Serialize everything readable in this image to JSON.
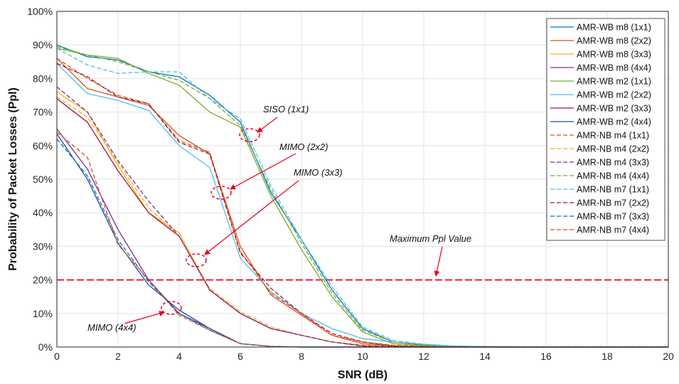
{
  "chart_data": {
    "type": "line",
    "xlabel": "SNR (dB)",
    "ylabel": "Probability of Packet Losses (Ppl)",
    "xlim": [
      0,
      20
    ],
    "ylim": [
      0,
      100
    ],
    "xticks": [
      "0",
      "2",
      "4",
      "6",
      "8",
      "10",
      "12",
      "14",
      "16",
      "18",
      "20"
    ],
    "yticks": [
      "0%",
      "10%",
      "20%",
      "30%",
      "40%",
      "50%",
      "60%",
      "70%",
      "80%",
      "90%",
      "100%"
    ],
    "grid": true,
    "legend_position": "top-right",
    "x": [
      0,
      1,
      2,
      3,
      4,
      5,
      6,
      7,
      8,
      9,
      10,
      11,
      12,
      13,
      14,
      15,
      16,
      17,
      18,
      19,
      20
    ],
    "series": [
      {
        "name": "AMR-WB m8 (1x1)",
        "color": "#0072BD",
        "dash": false,
        "values": [
          90,
          86.5,
          85.5,
          82,
          80.5,
          75,
          67,
          46,
          32,
          17,
          5.5,
          1.5,
          0.5,
          0.3,
          0.1,
          0,
          0,
          0,
          0,
          0,
          0
        ]
      },
      {
        "name": "AMR-WB m8 (2x2)",
        "color": "#D95319",
        "dash": false,
        "values": [
          86,
          77,
          74.5,
          72,
          63,
          57.5,
          30,
          15.5,
          9.5,
          3.5,
          1,
          0.3,
          0.1,
          0,
          0,
          0,
          0,
          0,
          0,
          0,
          0
        ]
      },
      {
        "name": "AMR-WB m8 (3x3)",
        "color": "#EDB120",
        "dash": false,
        "values": [
          76,
          70,
          54,
          40,
          34,
          17,
          10,
          5.5,
          3.5,
          1.5,
          0.3,
          0,
          0,
          0,
          0,
          0,
          0,
          0,
          0,
          0,
          0
        ]
      },
      {
        "name": "AMR-WB m8 (4x4)",
        "color": "#7E2F8E",
        "dash": false,
        "values": [
          65,
          53,
          35,
          20,
          10,
          5.5,
          1,
          0.2,
          0,
          0,
          0,
          0,
          0,
          0,
          0,
          0,
          0,
          0,
          0,
          0,
          0
        ]
      },
      {
        "name": "AMR-WB m2 (1x1)",
        "color": "#77AC30",
        "dash": false,
        "values": [
          89,
          87,
          86,
          81.5,
          78,
          70,
          65.5,
          45,
          29,
          15,
          4.5,
          1,
          0.3,
          0,
          0,
          0,
          0,
          0,
          0,
          0,
          0
        ]
      },
      {
        "name": "AMR-WB m2 (2x2)",
        "color": "#4DBEEE",
        "dash": false,
        "values": [
          84.5,
          75.5,
          73.5,
          70.5,
          60,
          53.5,
          26.5,
          16.5,
          10,
          5.5,
          2.5,
          1.5,
          0.8,
          0.3,
          0.1,
          0,
          0,
          0,
          0,
          0,
          0
        ]
      },
      {
        "name": "AMR-WB m2 (3x3)",
        "color": "#A2142F",
        "dash": false,
        "values": [
          74,
          67,
          52.5,
          40,
          33,
          17,
          10,
          5.5,
          3.5,
          1.5,
          0.5,
          0.1,
          0,
          0,
          0,
          0,
          0,
          0,
          0,
          0,
          0
        ]
      },
      {
        "name": "AMR-WB m2 (4x4)",
        "color": "#1F4E9C",
        "dash": false,
        "values": [
          63.5,
          50,
          31,
          18.5,
          11,
          5.5,
          1,
          0.2,
          0,
          0,
          0,
          0,
          0,
          0,
          0,
          0,
          0,
          0,
          0,
          0,
          0
        ]
      },
      {
        "name": "AMR-NB m4 (1x1)",
        "color": "#D95319",
        "dash": true,
        "values": [
          86,
          80,
          75,
          72.5,
          61.5,
          58,
          28.5,
          16,
          10,
          3.5,
          1.5,
          0.5,
          0.2,
          0,
          0,
          0,
          0,
          0,
          0,
          0,
          0
        ]
      },
      {
        "name": "AMR-NB m4 (2x2)",
        "color": "#EDB120",
        "dash": true,
        "values": [
          74.5,
          68.5,
          55,
          41.5,
          33,
          17.5,
          10.5,
          6,
          3.5,
          1.5,
          0.5,
          0.1,
          0,
          0,
          0,
          0,
          0,
          0,
          0,
          0,
          0
        ]
      },
      {
        "name": "AMR-NB m4 (3x3)",
        "color": "#7E2F8E",
        "dash": true,
        "values": [
          77.5,
          70,
          55.5,
          43.5,
          33,
          17,
          10,
          5.5,
          3.5,
          1.5,
          0.3,
          0,
          0,
          0,
          0,
          0,
          0,
          0,
          0,
          0,
          0
        ]
      },
      {
        "name": "AMR-NB m4 (4x4)",
        "color": "#77AC30",
        "dash": true,
        "values": [
          89.5,
          87,
          85,
          82,
          79.5,
          74,
          66,
          47,
          31,
          16,
          5,
          1.5,
          0.5,
          0.1,
          0,
          0,
          0,
          0,
          0,
          0,
          0
        ]
      },
      {
        "name": "AMR-NB m7 (1x1)",
        "color": "#4DBEEE",
        "dash": true,
        "values": [
          89,
          84,
          81.5,
          82,
          82,
          74,
          68,
          48,
          32,
          18,
          6,
          2,
          0.8,
          0.3,
          0.2,
          0.1,
          0,
          0,
          0,
          0,
          0
        ]
      },
      {
        "name": "AMR-NB m7 (2x2)",
        "color": "#A2142F",
        "dash": true,
        "values": [
          84.5,
          80.5,
          74.5,
          72.5,
          61,
          57.5,
          28,
          17.5,
          10,
          4,
          1.5,
          0.3,
          0,
          0,
          0,
          0,
          0,
          0,
          0,
          0,
          0
        ]
      },
      {
        "name": "AMR-NB m7 (3x3)",
        "color": "#0072BD",
        "dash": true,
        "values": [
          62,
          51,
          32,
          19.5,
          10,
          5,
          1,
          0.2,
          0,
          0,
          0,
          0,
          0,
          0,
          0,
          0,
          0,
          0,
          0,
          0,
          0
        ]
      },
      {
        "name": "AMR-NB m7 (4x4)",
        "color": "#D95319",
        "dash": true,
        "values": [
          64,
          56.5,
          30.5,
          20,
          9.5,
          5,
          1,
          0.2,
          0,
          0,
          0,
          0,
          0,
          0,
          0,
          0,
          0,
          0,
          0,
          0,
          0
        ]
      }
    ],
    "threshold": {
      "label": "Maximum Ppl Value",
      "value": 20,
      "color": "#E8001A"
    },
    "annotations": [
      {
        "text": "SISO (1x1)"
      },
      {
        "text": "MIMO (2x2)"
      },
      {
        "text": "MIMO (3x3)"
      },
      {
        "text": "MIMO (4x4)"
      }
    ]
  }
}
